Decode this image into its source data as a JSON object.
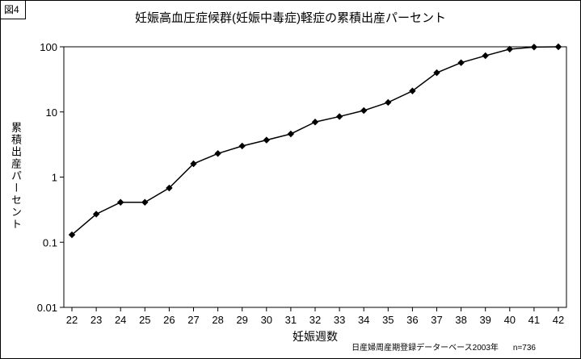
{
  "figure_label": "図4",
  "title": "妊娠高血圧症候群(妊娠中毒症)軽症の累積出産パーセント",
  "footer": {
    "source": "日産婦周産期登録データーベース2003年",
    "n": "n=736"
  },
  "chart_data": {
    "type": "line",
    "title": "妊娠高血圧症候群(妊娠中毒症)軽症の累積出産パーセント",
    "xlabel": "妊娠週数",
    "ylabel": "累積出産パーセント",
    "x": [
      22,
      23,
      24,
      25,
      26,
      27,
      28,
      29,
      30,
      31,
      32,
      33,
      34,
      35,
      36,
      37,
      38,
      39,
      40,
      41,
      42
    ],
    "values": [
      0.13,
      0.27,
      0.41,
      0.41,
      0.68,
      1.6,
      2.3,
      3.0,
      3.7,
      4.6,
      7.0,
      8.5,
      10.5,
      14,
      21,
      40,
      57,
      73,
      92,
      99,
      100
    ],
    "y_scale": "log",
    "ylim": [
      0.01,
      100
    ],
    "y_ticks": [
      100,
      10,
      1,
      0.1,
      0.01
    ],
    "y_tick_labels": [
      "100",
      "10",
      "1",
      "0.1",
      "0.01"
    ],
    "line_color": "#000000",
    "marker": "diamond",
    "grid": false,
    "legend": false,
    "source_note": "日産婦周産期登録データーベース2003年",
    "sample_size": "n=736"
  }
}
